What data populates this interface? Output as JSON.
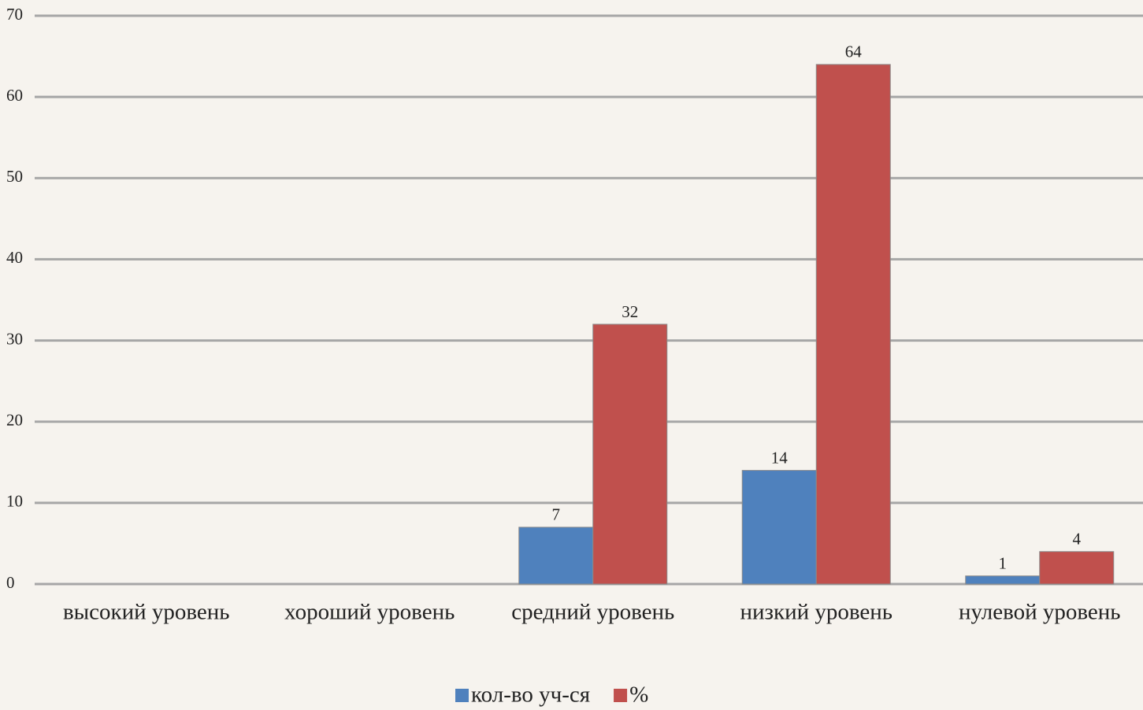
{
  "chart_data": {
    "type": "bar",
    "categories": [
      "высокий уровень",
      "хороший уровень",
      "средний уровень",
      "низкий уровень",
      "нулевой уровень"
    ],
    "series": [
      {
        "name": "кол-во уч-ся",
        "color": "#4f81bd",
        "values": [
          null,
          null,
          7,
          14,
          1
        ]
      },
      {
        "name": "%",
        "color": "#c0504d",
        "values": [
          null,
          null,
          32,
          64,
          4
        ]
      }
    ],
    "ylim": [
      0,
      70
    ],
    "yticks": [
      0,
      10,
      20,
      30,
      40,
      50,
      60,
      70
    ],
    "grid": true,
    "legend": "bottom"
  }
}
